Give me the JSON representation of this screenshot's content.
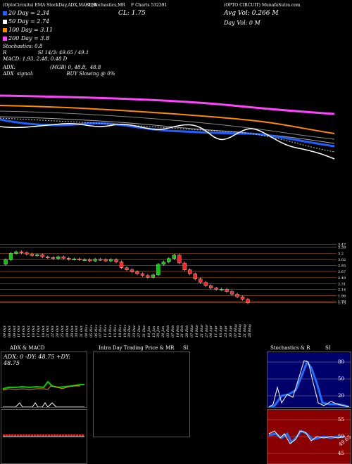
{
  "header": {
    "title_left": "(OptoCircuits) EMA Stocktechs,ADX,MACD,RSI,Stochastics,MRF Stockcharts 532391",
    "title_part1": "(OptoCircuits) EMA",
    "title_part2": "StockDay,ADX,MACD,R",
    "title_part3": "SI,Stochastics,MR",
    "title_part4": "F Charts 532391",
    "title_right": "(OPTO CIRCUIT) MunafaSutra.com",
    "cl": "CL: 1.75",
    "avg_vol": "Avg Vol: 0.266  M",
    "day_vol": "Day Vol: 0   M"
  },
  "legend": [
    {
      "label": "20  Day = 2.34",
      "color": "#1f5fff"
    },
    {
      "label": "50  Day = 2.74",
      "color": "#ffffff"
    },
    {
      "label": "100  Day = 3.11",
      "color": "#ff8c00"
    },
    {
      "label": "200  Day = 3.8",
      "color": "#ff44ff"
    }
  ],
  "indicators": {
    "stochastics": "Stochastics: 0.8",
    "rsi": "R                    SI 14/3: 49.65 / 49.1",
    "macd": "MACD: 1.93, 2.48,  0.48  D",
    "adx": "ADX:                      (MGB) 0, 48.8,  48.8",
    "adx_signal": "ADX  signal:                     BUY Slowing @ 0%"
  },
  "price_axis": [
    "3.47",
    "3.39",
    "3.2",
    "3.02",
    "2.85",
    "2.67",
    "2.49",
    "2.31",
    "2.14",
    "1.96",
    "1.79",
    "1.75"
  ],
  "dates": [
    "04 Oct",
    "08 Oct",
    "09 Oct",
    "11 Oct",
    "14 Oct",
    "15 Oct",
    "16 Oct",
    "17 Oct",
    "18 Oct",
    "21 Oct",
    "22 Oct",
    "24 Oct",
    "25 Oct",
    "28 Oct",
    "29 Oct",
    "30 Oct",
    "31 Oct",
    "04 Nov",
    "05 Nov",
    "06 Nov",
    "07 Nov",
    "11 Nov",
    "13 Nov",
    "15 Nov",
    "18 Nov",
    "19 Nov",
    "20 Dec",
    "23 Dec",
    "27 Dec",
    "31 Dec",
    "10 Jan",
    "15 Jan",
    "20 Jan",
    "24 Jan",
    "03 Feb",
    "07 Feb",
    "14 Feb",
    "21 Feb",
    "28 Feb",
    "07 Mar",
    "14 Mar",
    "21 Mar",
    "27 Mar",
    "04 Apr",
    "11 Apr",
    "16 Apr",
    "23 Apr",
    "30 Apr",
    "07 May",
    "14 May",
    "21 May",
    "28 May"
  ],
  "panels": {
    "adx_title": "ADX  & MACD",
    "adx_readout": "ADX: 0   -DY: 48.75  +DY: 48.75",
    "intraday_title": "Intra Day Trading Price  & MR",
    "intraday_si": "SI",
    "stoch_title": "Stochastics & R",
    "stoch_si": "SI",
    "stoch_ticks": [
      "80",
      "50",
      "20"
    ],
    "rsi_ticks": [
      "55",
      "50",
      "45"
    ],
    "rsi_label": "49.65"
  },
  "colors": {
    "ema20": "#1f5fff",
    "ema50": "#ffffff",
    "ema100": "#ff8c00",
    "ema200": "#ff44ff",
    "up": "#00cc00",
    "down": "#ff2222",
    "grid": "#b26a00",
    "stoch_bg": "#00006a",
    "rsi_bg": "#8b0000"
  }
}
